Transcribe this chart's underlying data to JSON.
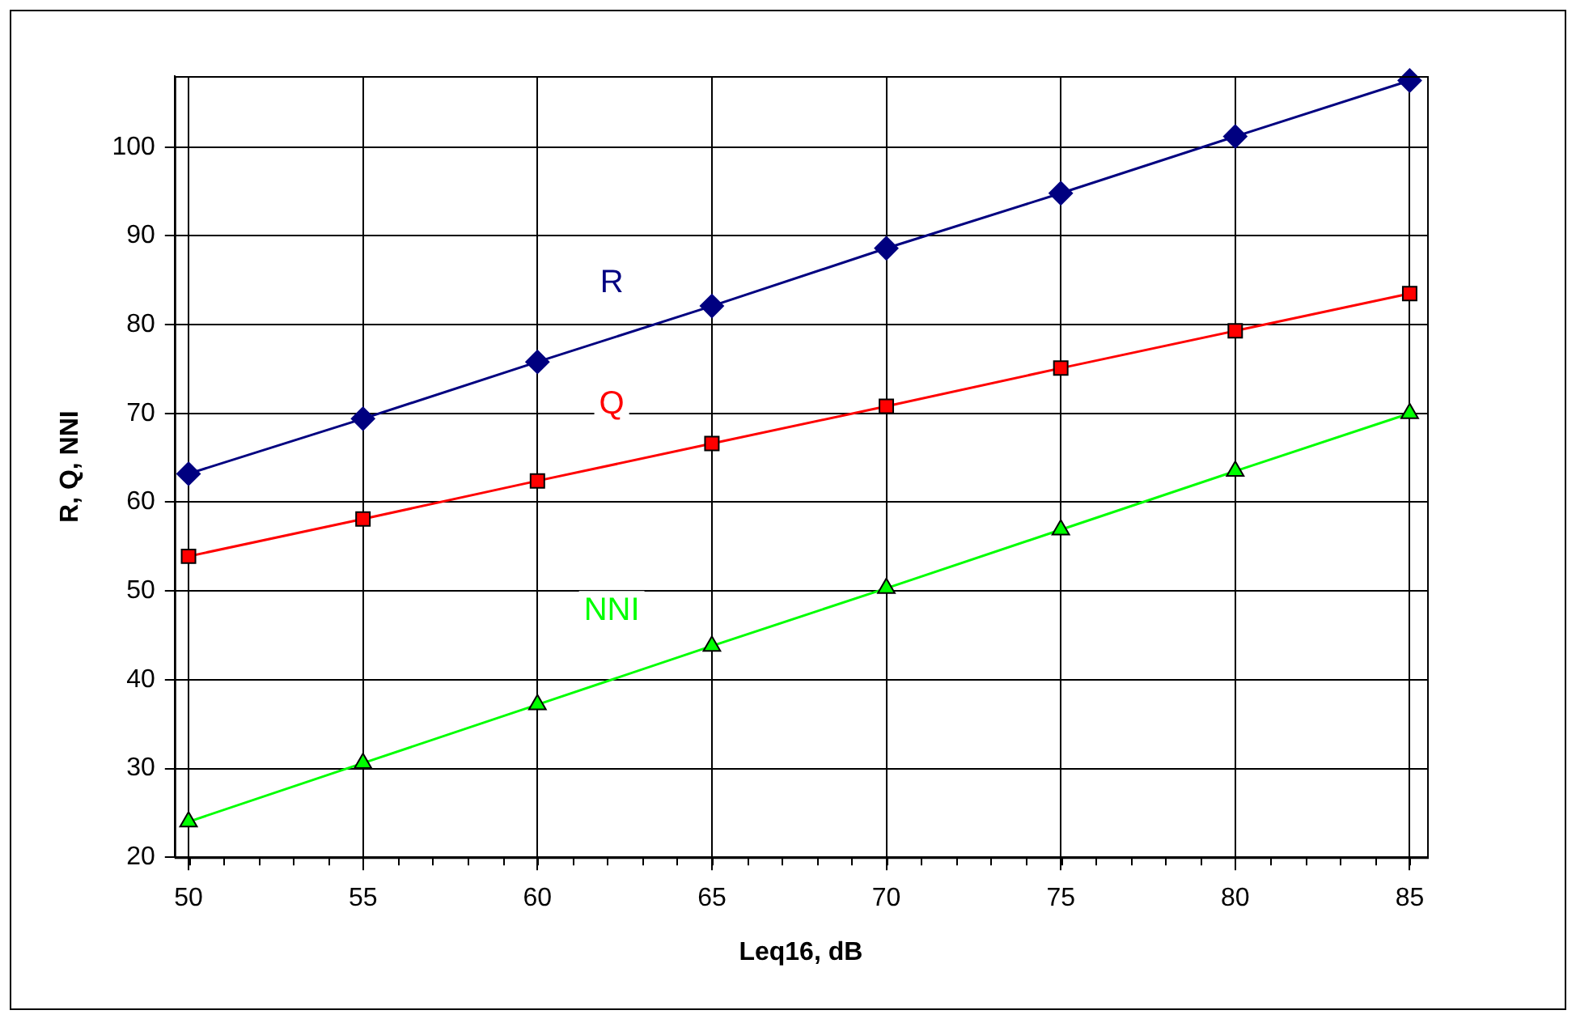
{
  "chart_data": {
    "type": "line",
    "xlabel": "Leq16, dB",
    "ylabel": "R, Q, NNI",
    "x": [
      50,
      55,
      60,
      65,
      70,
      75,
      80,
      85
    ],
    "series": [
      {
        "name": "R",
        "color": "#000080",
        "marker": "diamond",
        "values": [
          63.2,
          69.4,
          75.8,
          82.1,
          88.6,
          94.8,
          101.2,
          107.5
        ]
      },
      {
        "name": "Q",
        "color": "#ff0000",
        "marker": "square",
        "values": [
          53.9,
          58.1,
          62.4,
          66.6,
          70.8,
          75.1,
          79.3,
          83.5
        ]
      },
      {
        "name": "NNI",
        "color": "#00ff00",
        "marker": "triangle",
        "values": [
          24,
          30.6,
          37.2,
          43.8,
          50.3,
          56.9,
          63.5,
          70
        ]
      }
    ],
    "xlim": [
      49.6,
      85.5
    ],
    "xticks": [
      50,
      55,
      60,
      65,
      70,
      75,
      80,
      85
    ],
    "ylim": [
      20,
      108
    ],
    "yticks": [
      20,
      30,
      40,
      50,
      60,
      70,
      80,
      90,
      100
    ],
    "grid": true,
    "legend": false
  }
}
